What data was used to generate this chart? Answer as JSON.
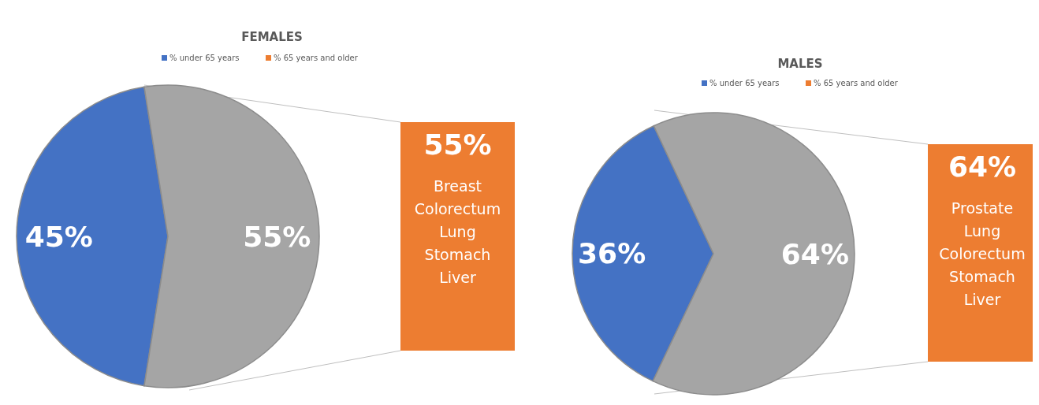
{
  "chart_data": [
    {
      "type": "pie",
      "title": "FEMALES",
      "categories": [
        "% under 65 years",
        null
      ],
      "values": [
        45,
        55
      ],
      "colors": [
        "#4472c4",
        "#a5a5a5"
      ],
      "value_labels": [
        "45%",
        "55%"
      ],
      "legend": "top"
    },
    {
      "type": "other",
      "categories": [
        "% 65 years and older"
      ],
      "values": [
        55
      ],
      "colors": [
        "#ed7d31"
      ],
      "value_labels": [
        "55%"
      ],
      "annotations": [
        "Breast",
        "Colorectum",
        "Lung",
        "Stomach",
        "Liver"
      ]
    },
    {
      "type": "pie",
      "title": "MALES",
      "categories": [
        "% under 65 years",
        null
      ],
      "values": [
        36,
        64
      ],
      "colors": [
        "#4472c4",
        "#a5a5a5"
      ],
      "value_labels": [
        "36%",
        "64%"
      ],
      "legend": "top"
    },
    {
      "type": "other",
      "categories": [
        "% 65 years and older"
      ],
      "values": [
        64
      ],
      "colors": [
        "#ed7d31"
      ],
      "value_labels": [
        "64%"
      ],
      "annotations": [
        "Prostate",
        "Lung",
        "Colorectum",
        "Stomach",
        "Liver"
      ]
    }
  ]
}
